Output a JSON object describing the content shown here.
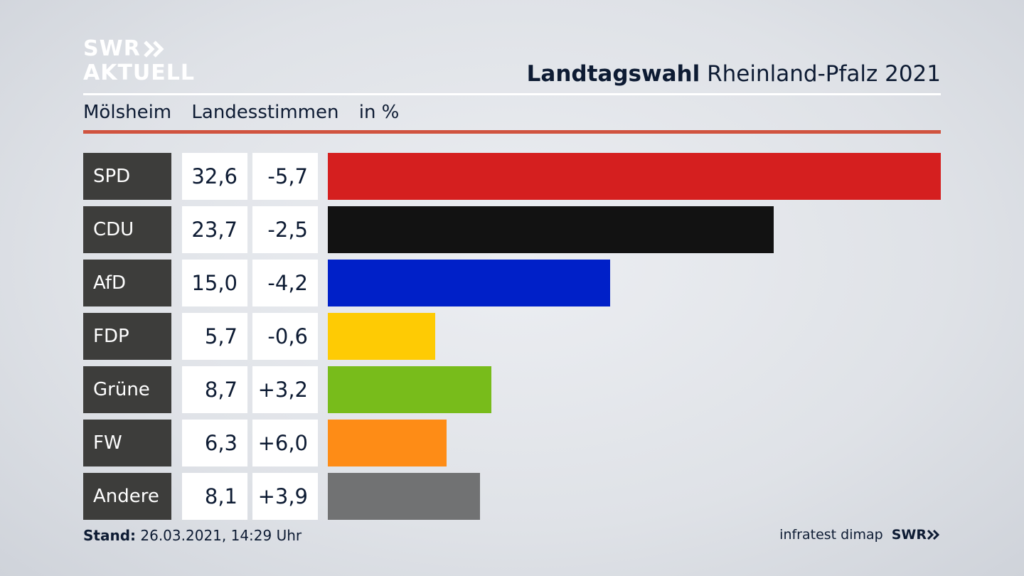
{
  "logo": {
    "line1": "SWR",
    "line2": "AKTUELL"
  },
  "header": {
    "title_bold": "Landtagswahl",
    "title_rest": "Rheinland-Pfalz 2021"
  },
  "subheader": {
    "place": "Mölsheim",
    "type": "Landesstimmen",
    "unit": "in %"
  },
  "footer": {
    "stand_label": "Stand:",
    "stand_value": "26.03.2021, 14:29 Uhr",
    "source": "infratest dimap",
    "brand": "SWR"
  },
  "chart_data": {
    "type": "bar",
    "orientation": "horizontal",
    "title": "Landtagswahl Rheinland-Pfalz 2021",
    "subtitle": "Mölsheim Landesstimmen in %",
    "categories": [
      "SPD",
      "CDU",
      "AfD",
      "FDP",
      "Grüne",
      "FW",
      "Andere"
    ],
    "values": [
      32.6,
      23.7,
      15.0,
      5.7,
      8.7,
      6.3,
      8.1
    ],
    "value_labels": [
      "32,6",
      "23,7",
      "15,0",
      "5,7",
      "8,7",
      "6,3",
      "8,1"
    ],
    "diff_labels": [
      "-5,7",
      "-2,5",
      "-4,2",
      "-0,6",
      "+3,2",
      "+6,0",
      "+3,9"
    ],
    "diffs": [
      -5.7,
      -2.5,
      -4.2,
      -0.6,
      3.2,
      6.0,
      3.9
    ],
    "colors": [
      "#d51f1f",
      "#121212",
      "#0020c8",
      "#fecb04",
      "#78bc1b",
      "#fe8c16",
      "#717273"
    ],
    "xlim": [
      0,
      32.6
    ],
    "grid": false
  }
}
